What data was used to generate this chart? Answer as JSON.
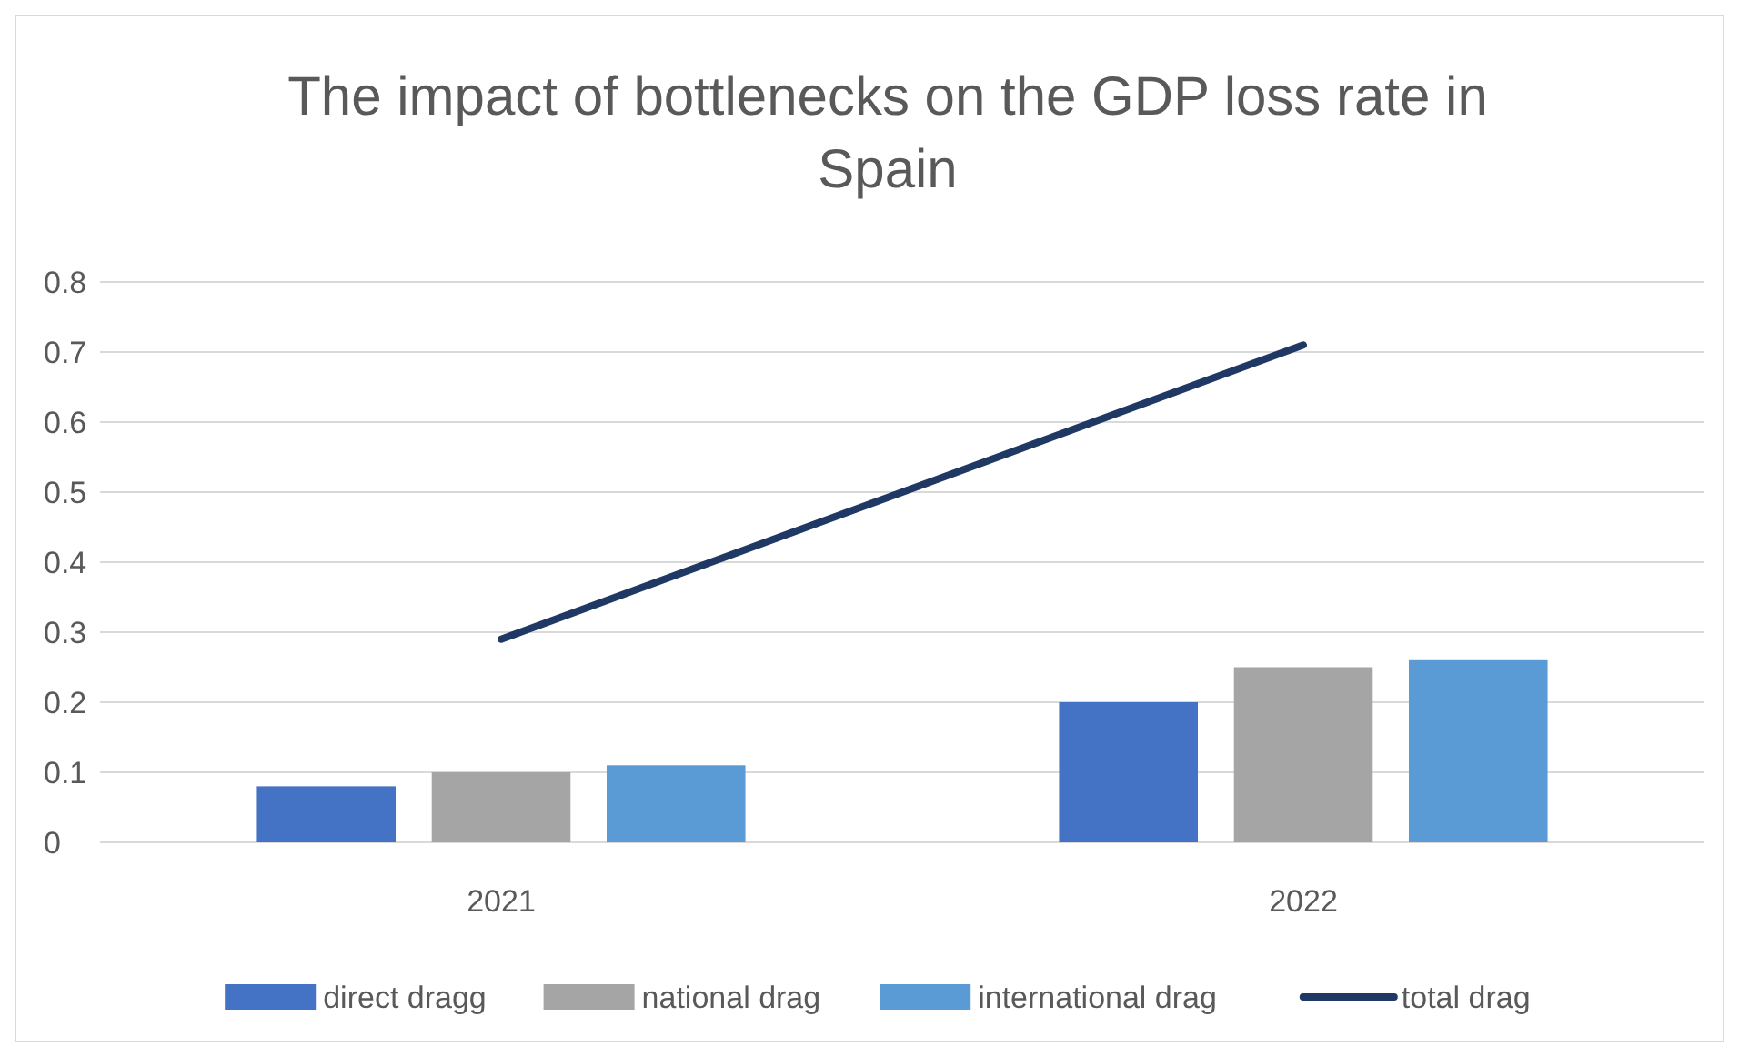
{
  "chart_data": {
    "type": "bar",
    "title": "The impact of bottlenecks on the GDP loss rate in Spain",
    "categories": [
      "2021",
      "2022"
    ],
    "series": [
      {
        "name": "direct dragg",
        "color": "#4472c4",
        "values": [
          0.08,
          0.2
        ]
      },
      {
        "name": "national drag",
        "color": "#a5a5a5",
        "values": [
          0.1,
          0.25
        ]
      },
      {
        "name": "international drag",
        "color": "#5b9bd5",
        "values": [
          0.11,
          0.26
        ]
      },
      {
        "name": "total drag",
        "type": "line",
        "color": "#203864",
        "values": [
          0.29,
          0.71
        ]
      }
    ],
    "ylim": [
      0,
      0.8
    ],
    "yticks": [
      0,
      0.1,
      0.2,
      0.3,
      0.4,
      0.5,
      0.6,
      0.7,
      0.8
    ],
    "grid": "y",
    "legend": "bottom"
  }
}
